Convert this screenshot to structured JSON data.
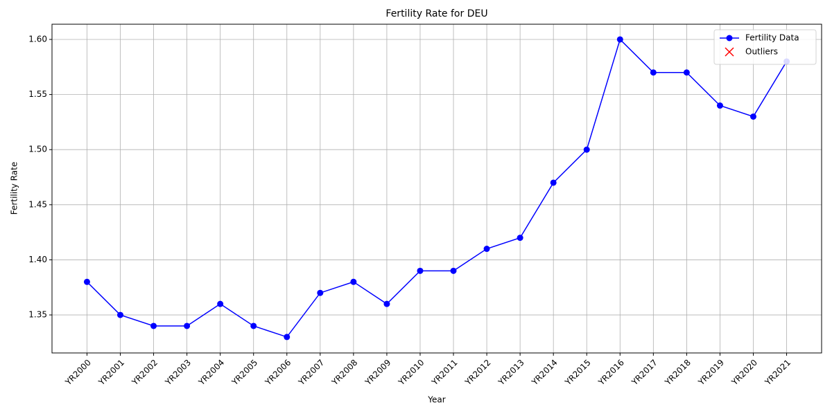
{
  "chart_data": {
    "type": "line",
    "title": "Fertility Rate for DEU",
    "xlabel": "Year",
    "ylabel": "Fertility Rate",
    "categories": [
      "YR2000",
      "YR2001",
      "YR2002",
      "YR2003",
      "YR2004",
      "YR2005",
      "YR2006",
      "YR2007",
      "YR2008",
      "YR2009",
      "YR2010",
      "YR2011",
      "YR2012",
      "YR2013",
      "YR2014",
      "YR2015",
      "YR2016",
      "YR2017",
      "YR2018",
      "YR2019",
      "YR2020",
      "YR2021"
    ],
    "series": [
      {
        "name": "Fertility Data",
        "color": "#0000ff",
        "values": [
          1.38,
          1.35,
          1.34,
          1.34,
          1.36,
          1.34,
          1.33,
          1.37,
          1.38,
          1.36,
          1.39,
          1.39,
          1.41,
          1.42,
          1.47,
          1.5,
          1.6,
          1.57,
          1.57,
          1.54,
          1.53,
          1.58
        ]
      },
      {
        "name": "Outliers",
        "color": "#ff0000",
        "values": [
          null,
          null,
          null,
          null,
          null,
          null,
          null,
          null,
          null,
          null,
          null,
          null,
          null,
          null,
          null,
          null,
          null,
          null,
          null,
          null,
          null,
          null
        ]
      }
    ],
    "ylim": [
      1.3155,
      1.6138
    ],
    "yticks": [
      1.35,
      {
        "value": 1.4,
        "label": "1.40"
      },
      1.45,
      {
        "value": 1.5,
        "label": "1.50"
      },
      1.55,
      {
        "value": 1.6,
        "label": "1.60"
      }
    ],
    "grid": true,
    "legend": "upper right"
  }
}
